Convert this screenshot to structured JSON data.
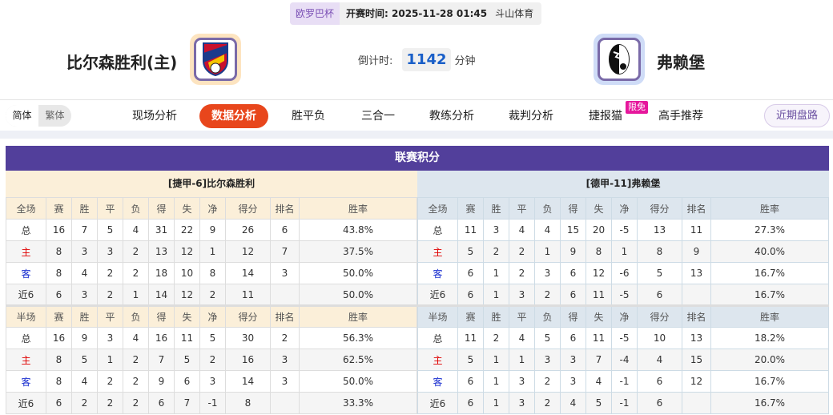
{
  "match": {
    "competition": "欧罗巴杯",
    "kickoff": "开赛时间: 2025-11-28 01:45",
    "venue": "斗山体育"
  },
  "home": {
    "name": "比尔森胜利(主)",
    "logo": "viktoria-plzen-crest",
    "frame_color": "#fde4c0"
  },
  "away": {
    "name": "弗赖堡",
    "logo": "sc-freiburg-crest",
    "frame_color": "#cfdcf7"
  },
  "countdown": {
    "label": "倒计时:",
    "value": "1142",
    "unit": "分钟"
  },
  "lang": {
    "simplified": "简体",
    "traditional": "繁体"
  },
  "nav": {
    "items": [
      "现场分析",
      "数据分析",
      "胜平负",
      "三合一",
      "教练分析",
      "裁判分析",
      "捷报猫",
      "高手推荐"
    ],
    "active": 1,
    "badge": "限免",
    "recent": "近期盘路"
  },
  "colors": {
    "accent": "#e8461c",
    "section": "#523f9b",
    "home_label": "#e00000",
    "away_label": "#1a2fd0"
  },
  "standings": {
    "title": "联赛积分",
    "columns": [
      "赛",
      "胜",
      "平",
      "负",
      "得",
      "失",
      "净",
      "得分",
      "排名",
      "胜率"
    ],
    "teams": [
      {
        "header": "[捷甲-6]比尔森胜利",
        "full": {
          "label": "全场",
          "rows": [
            [
              "总",
              "16",
              "7",
              "5",
              "4",
              "31",
              "22",
              "9",
              "26",
              "6",
              "43.8%"
            ],
            [
              "主",
              "8",
              "3",
              "3",
              "2",
              "13",
              "12",
              "1",
              "12",
              "7",
              "37.5%"
            ],
            [
              "客",
              "8",
              "4",
              "2",
              "2",
              "18",
              "10",
              "8",
              "14",
              "3",
              "50.0%"
            ],
            [
              "近6",
              "6",
              "3",
              "2",
              "1",
              "14",
              "12",
              "2",
              "11",
              "",
              "50.0%"
            ]
          ]
        },
        "half": {
          "label": "半场",
          "rows": [
            [
              "总",
              "16",
              "9",
              "3",
              "4",
              "16",
              "11",
              "5",
              "30",
              "2",
              "56.3%"
            ],
            [
              "主",
              "8",
              "5",
              "1",
              "2",
              "7",
              "5",
              "2",
              "16",
              "3",
              "62.5%"
            ],
            [
              "客",
              "8",
              "4",
              "2",
              "2",
              "9",
              "6",
              "3",
              "14",
              "3",
              "50.0%"
            ],
            [
              "近6",
              "6",
              "2",
              "2",
              "2",
              "6",
              "7",
              "-1",
              "8",
              "",
              "33.3%"
            ]
          ]
        }
      },
      {
        "header": "[德甲-11]弗赖堡",
        "full": {
          "label": "全场",
          "rows": [
            [
              "总",
              "11",
              "3",
              "4",
              "4",
              "15",
              "20",
              "-5",
              "13",
              "11",
              "27.3%"
            ],
            [
              "主",
              "5",
              "2",
              "2",
              "1",
              "9",
              "8",
              "1",
              "8",
              "9",
              "40.0%"
            ],
            [
              "客",
              "6",
              "1",
              "2",
              "3",
              "6",
              "12",
              "-6",
              "5",
              "13",
              "16.7%"
            ],
            [
              "近6",
              "6",
              "1",
              "3",
              "2",
              "6",
              "11",
              "-5",
              "6",
              "",
              "16.7%"
            ]
          ]
        },
        "half": {
          "label": "半场",
          "rows": [
            [
              "总",
              "11",
              "2",
              "4",
              "5",
              "6",
              "11",
              "-5",
              "10",
              "13",
              "18.2%"
            ],
            [
              "主",
              "5",
              "1",
              "1",
              "3",
              "3",
              "7",
              "-4",
              "4",
              "15",
              "20.0%"
            ],
            [
              "客",
              "6",
              "1",
              "3",
              "2",
              "3",
              "4",
              "-1",
              "6",
              "12",
              "16.7%"
            ],
            [
              "近6",
              "6",
              "1",
              "3",
              "2",
              "4",
              "5",
              "-1",
              "6",
              "",
              "16.7%"
            ]
          ]
        }
      }
    ]
  }
}
